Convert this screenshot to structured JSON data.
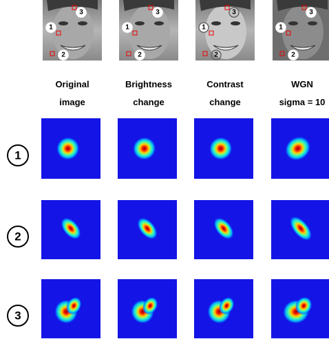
{
  "columns": [
    {
      "line1": "Original",
      "line2": "image"
    },
    {
      "line1": "Brightness",
      "line2": "change"
    },
    {
      "line1": "Contrast",
      "line2": "change"
    },
    {
      "line1": "WGN",
      "line2": "sigma = 10"
    }
  ],
  "rows": [
    "1",
    "2",
    "3"
  ],
  "face_markers": [
    "1",
    "2",
    "3"
  ]
}
